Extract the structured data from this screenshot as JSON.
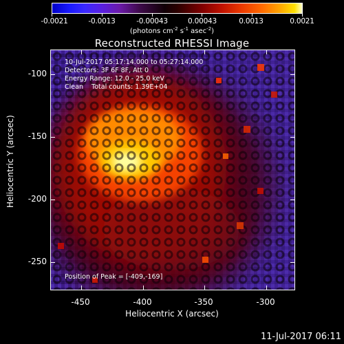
{
  "colorbar": {
    "ticks": [
      "-0.0021",
      "-0.0013",
      "-0.00043",
      "0.00043",
      "0.0013",
      "0.0021"
    ],
    "units_prefix": "(photons cm",
    "units_exp1": "-2",
    "units_mid": " s",
    "units_exp2": "-1",
    "units_mid2": " asec",
    "units_exp3": "-2",
    "units_suffix": ")"
  },
  "title": "Reconstructed RHESSI Image",
  "annotations": {
    "line1": "10-Jul-2017 05:17:14.000 to 05:27:14.000",
    "line2": "Detectors: 3F 6F 8F, Att 0",
    "line3": "Energy Range: 12.0 - 25.0 keV",
    "line4": "Clean    Total counts: 1.39E+04",
    "peak": "Position of Peak = [-409,-169]"
  },
  "axes": {
    "xlabel": "Heliocentric X (arcsec)",
    "ylabel": "Heliocentric Y (arcsec)",
    "xticks": [
      "-450",
      "-400",
      "-350",
      "-300"
    ],
    "yticks": [
      "-100",
      "-150",
      "-200",
      "-250"
    ]
  },
  "timestamp": "11-Jul-2017 06:11"
}
